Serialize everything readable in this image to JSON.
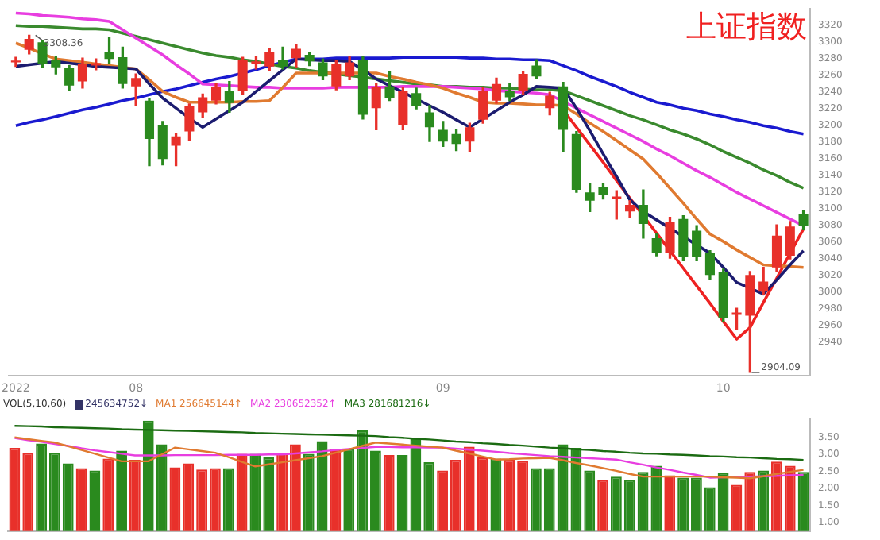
{
  "chart_data": [
    {
      "type": "candlestick",
      "title": "上证指数",
      "categories": [
        "2022",
        null,
        null,
        null,
        null,
        null,
        null,
        null,
        null,
        "08",
        null,
        null,
        null,
        null,
        null,
        null,
        null,
        null,
        null,
        null,
        null,
        null,
        null,
        null,
        null,
        null,
        null,
        null,
        null,
        null,
        null,
        null,
        "09",
        null,
        null,
        null,
        null,
        null,
        null,
        null,
        null,
        null,
        null,
        null,
        null,
        null,
        null,
        null,
        null,
        null,
        null,
        null,
        null,
        "10",
        null,
        null,
        null,
        null,
        null,
        null
      ],
      "ohlc": [
        [
          3276,
          3282,
          3271,
          3278
        ],
        [
          3291,
          3308.36,
          3286,
          3304
        ],
        [
          3300,
          3302,
          3270,
          3274
        ],
        [
          3279,
          3283,
          3262,
          3270
        ],
        [
          3269,
          3272,
          3242,
          3248
        ],
        [
          3253,
          3281,
          3245,
          3274
        ],
        [
          3272,
          3280,
          3267,
          3275
        ],
        [
          3288,
          3306,
          3275,
          3280
        ],
        [
          3282,
          3294,
          3245,
          3250
        ],
        [
          3247,
          3262,
          3224,
          3257
        ],
        [
          3230,
          3232,
          3152,
          3184
        ],
        [
          3201,
          3205,
          3153,
          3160
        ],
        [
          3176,
          3190,
          3152,
          3187
        ],
        [
          3193,
          3226,
          3182,
          3224
        ],
        [
          3216,
          3238,
          3210,
          3234
        ],
        [
          3230,
          3250,
          3226,
          3246
        ],
        [
          3242,
          3253,
          3216,
          3227
        ],
        [
          3242,
          3282,
          3238,
          3279
        ],
        [
          3274,
          3283,
          3268,
          3277
        ],
        [
          3271,
          3292,
          3266,
          3288
        ],
        [
          3279,
          3294,
          3268,
          3271
        ],
        [
          3281,
          3297,
          3270,
          3292
        ],
        [
          3285,
          3288,
          3272,
          3277
        ],
        [
          3276,
          3280,
          3255,
          3259
        ],
        [
          3247,
          3278,
          3243,
          3274
        ],
        [
          3259,
          3283,
          3255,
          3276
        ],
        [
          3279,
          3283,
          3208,
          3213
        ],
        [
          3221,
          3250,
          3195,
          3246
        ],
        [
          3247,
          3265,
          3230,
          3233
        ],
        [
          3201,
          3246,
          3195,
          3242
        ],
        [
          3239,
          3245,
          3220,
          3224
        ],
        [
          3216,
          3224,
          3181,
          3198
        ],
        [
          3195,
          3205,
          3175,
          3181
        ],
        [
          3190,
          3195,
          3170,
          3178
        ],
        [
          3181,
          3203,
          3169,
          3198
        ],
        [
          3207,
          3246,
          3203,
          3242
        ],
        [
          3230,
          3257,
          3227,
          3250
        ],
        [
          3242,
          3250,
          3230,
          3234
        ],
        [
          3242,
          3265,
          3238,
          3262
        ],
        [
          3272,
          3279,
          3256,
          3259
        ],
        [
          3221,
          3240,
          3213,
          3236
        ],
        [
          3247,
          3252,
          3169,
          3195
        ],
        [
          3190,
          3193,
          3120,
          3123
        ],
        [
          3120,
          3130,
          3097,
          3110
        ],
        [
          3126,
          3131,
          3112,
          3117
        ],
        [
          3112,
          3122,
          3088,
          3115
        ],
        [
          3097,
          3110,
          3090,
          3105
        ],
        [
          3105,
          3123,
          3065,
          3082
        ],
        [
          3065,
          3070,
          3044,
          3047
        ],
        [
          3047,
          3090,
          3041,
          3085
        ],
        [
          3088,
          3092,
          3038,
          3042
        ],
        [
          3074,
          3080,
          3038,
          3042
        ],
        [
          3047,
          3050,
          3016,
          3021
        ],
        [
          3024,
          3028,
          2965,
          2969
        ],
        [
          2973,
          2981,
          2955,
          2976
        ],
        [
          2972,
          3025,
          2904.09,
          3021
        ],
        [
          3001,
          3030,
          2998,
          3013
        ],
        [
          3030,
          3081,
          3025,
          3068
        ],
        [
          3044,
          3085,
          3040,
          3079
        ],
        [
          3094,
          3098,
          3075,
          3080
        ]
      ],
      "colors": [
        "#e8302a",
        "#e8302a",
        "#2a8a1e",
        "#2a8a1e",
        "#2a8a1e",
        "#e8302a",
        "#e8302a",
        "#2a8a1e",
        "#2a8a1e",
        "#e8302a",
        "#2a8a1e",
        "#2a8a1e",
        "#e8302a",
        "#e8302a",
        "#e8302a",
        "#e8302a",
        "#2a8a1e",
        "#e8302a",
        "#e8302a",
        "#e8302a",
        "#2a8a1e",
        "#e8302a",
        "#2a8a1e",
        "#2a8a1e",
        "#e8302a",
        "#e8302a",
        "#2a8a1e",
        "#e8302a",
        "#2a8a1e",
        "#e8302a",
        "#2a8a1e",
        "#2a8a1e",
        "#2a8a1e",
        "#2a8a1e",
        "#e8302a",
        "#e8302a",
        "#e8302a",
        "#2a8a1e",
        "#e8302a",
        "#2a8a1e",
        "#e8302a",
        "#2a8a1e",
        "#2a8a1e",
        "#2a8a1e",
        "#2a8a1e",
        "#e8302a",
        "#e8302a",
        "#2a8a1e",
        "#2a8a1e",
        "#e8302a",
        "#2a8a1e",
        "#2a8a1e",
        "#2a8a1e",
        "#2a8a1e",
        "#e8302a",
        "#e8302a",
        "#e8302a",
        "#e8302a",
        "#e8302a",
        "#2a8a1e"
      ],
      "series": [
        {
          "type": "line",
          "color": "#1c1c70",
          "values": [
            3271,
            3273,
            3275,
            3277,
            3275,
            3273,
            3271,
            3270,
            3269,
            3268,
            3250,
            3233,
            3221,
            3209,
            3198,
            3208,
            3218,
            3228,
            3241,
            3254,
            3267,
            3280,
            3279,
            3278,
            3278,
            3277,
            3267,
            3256,
            3248,
            3240,
            3232,
            3224,
            3216,
            3207,
            3198,
            3208,
            3218,
            3228,
            3237,
            3247,
            3246,
            3245,
            3221,
            3194,
            3166,
            3139,
            3111,
            3097,
            3087,
            3077,
            3067,
            3057,
            3047,
            3030,
            3012,
            3005,
            2998,
            3015,
            3033,
            3050
          ]
        },
        {
          "type": "line",
          "color": "#e07a30",
          "values": [
            3299,
            3293,
            3286,
            3280,
            3278,
            3276,
            3274,
            3272,
            3270,
            3268,
            3255,
            3241,
            3234,
            3228,
            3228,
            3228,
            3228,
            3229,
            3229,
            3230,
            3246,
            3263,
            3263,
            3263,
            3263,
            3263,
            3263,
            3263,
            3259,
            3256,
            3252,
            3249,
            3245,
            3239,
            3234,
            3228,
            3227,
            3227,
            3226,
            3225,
            3225,
            3224,
            3214,
            3203,
            3193,
            3182,
            3171,
            3160,
            3143,
            3125,
            3107,
            3088,
            3070,
            3061,
            3051,
            3042,
            3033,
            3032,
            3031,
            3030
          ]
        },
        {
          "type": "line",
          "color": "#e83ee0",
          "values": [
            3335,
            3334,
            3332,
            3331,
            3330,
            3328,
            3327,
            3325,
            3315,
            3305,
            3295,
            3285,
            3273,
            3262,
            3250,
            3249,
            3248,
            3247,
            3246,
            3246,
            3245,
            3245,
            3245,
            3245,
            3246,
            3246,
            3246,
            3246,
            3246,
            3247,
            3247,
            3247,
            3247,
            3246,
            3245,
            3244,
            3242,
            3241,
            3240,
            3239,
            3237,
            3229,
            3221,
            3213,
            3205,
            3197,
            3189,
            3181,
            3172,
            3164,
            3155,
            3146,
            3138,
            3129,
            3120,
            3112,
            3104,
            3096,
            3088,
            3080
          ]
        },
        {
          "type": "line",
          "color": "#3a8a2e",
          "values": [
            3320,
            3319,
            3319,
            3318,
            3317,
            3316,
            3316,
            3315,
            3311,
            3307,
            3303,
            3299,
            3295,
            3291,
            3287,
            3284,
            3282,
            3279,
            3277,
            3274,
            3271,
            3269,
            3266,
            3264,
            3262,
            3260,
            3258,
            3256,
            3254,
            3252,
            3250,
            3249,
            3247,
            3247,
            3246,
            3246,
            3245,
            3245,
            3244,
            3243,
            3243,
            3242,
            3236,
            3230,
            3224,
            3218,
            3212,
            3207,
            3201,
            3195,
            3190,
            3184,
            3177,
            3169,
            3162,
            3155,
            3147,
            3140,
            3132,
            3125
          ]
        },
        {
          "type": "line",
          "color": "#ee2222",
          "values": [
            null,
            null,
            null,
            null,
            null,
            null,
            null,
            null,
            null,
            null,
            null,
            null,
            null,
            null,
            null,
            null,
            null,
            null,
            null,
            null,
            null,
            null,
            null,
            null,
            null,
            null,
            null,
            null,
            null,
            null,
            null,
            null,
            null,
            null,
            null,
            null,
            null,
            null,
            null,
            null,
            null,
            3219,
            3198,
            3177,
            3156,
            3134,
            3113,
            3092,
            3071,
            3050,
            3029,
            3008,
            2987,
            2965,
            2944,
            2958,
            2988,
            3017,
            3047,
            3076
          ]
        },
        {
          "type": "line",
          "color": "#1a1ad0",
          "values": [
            3200,
            3204,
            3207,
            3211,
            3215,
            3219,
            3222,
            3226,
            3230,
            3233,
            3237,
            3241,
            3244,
            3248,
            3252,
            3256,
            3259,
            3263,
            3267,
            3272,
            3276,
            3280,
            3280,
            3280,
            3281,
            3281,
            3281,
            3281,
            3281,
            3282,
            3282,
            3282,
            3282,
            3282,
            3281,
            3281,
            3280,
            3280,
            3279,
            3279,
            3278,
            3272,
            3266,
            3259,
            3253,
            3247,
            3240,
            3234,
            3228,
            3225,
            3221,
            3218,
            3214,
            3211,
            3207,
            3204,
            3200,
            3197,
            3193,
            3190
          ]
        }
      ],
      "ylim": [
        2900,
        3340
      ],
      "yticks": [
        2940,
        2960,
        2980,
        3000,
        3020,
        3040,
        3060,
        3080,
        3100,
        3120,
        3140,
        3160,
        3180,
        3200,
        3220,
        3240,
        3260,
        3280,
        3300,
        3320
      ],
      "annotations": [
        "3308.36",
        "2904.09"
      ],
      "grid": false
    },
    {
      "type": "bar",
      "legend_title": "VOL(5,10,60)",
      "legend": "top left",
      "tick_labels": "y",
      "categories": [
        null,
        null,
        null,
        null,
        null,
        null,
        null,
        null,
        null,
        null,
        null,
        null,
        null,
        null,
        null,
        null,
        null,
        null,
        null,
        null,
        null,
        null,
        null,
        null,
        null,
        null,
        null,
        null,
        null,
        null,
        null,
        null,
        null,
        null,
        null,
        null,
        null,
        null,
        null,
        null,
        null,
        null,
        null,
        null,
        null,
        null,
        null,
        null,
        null,
        null,
        null,
        null,
        null,
        null,
        null,
        null,
        null,
        null,
        null,
        null
      ],
      "series": [
        {
          "type": "bar",
          "name": "245634752↓",
          "values": [
            3.19,
            3.05,
            3.32,
            3.05,
            2.74,
            2.6,
            2.53,
            2.88,
            3.11,
            2.84,
            3.99,
            3.3,
            2.62,
            2.74,
            2.56,
            2.6,
            2.6,
            3.02,
            3.02,
            2.91,
            3.05,
            3.3,
            3.02,
            3.39,
            3.16,
            3.16,
            3.71,
            3.11,
            2.98,
            2.98,
            3.46,
            2.77,
            2.53,
            2.84,
            3.23,
            2.91,
            2.88,
            2.84,
            2.81,
            2.6,
            2.6,
            3.3,
            3.19,
            2.53,
            2.25,
            2.35,
            2.25,
            2.49,
            2.67,
            2.39,
            2.32,
            2.32,
            2.04,
            2.46,
            2.11,
            2.49,
            2.53,
            2.79,
            2.67,
            2.49
          ],
          "colors": [
            "#e8302a",
            "#e8302a",
            "#2a8a1e",
            "#2a8a1e",
            "#2a8a1e",
            "#e8302a",
            "#2a8a1e",
            "#e8302a",
            "#2a8a1e",
            "#e8302a",
            "#2a8a1e",
            "#2a8a1e",
            "#e8302a",
            "#e8302a",
            "#e8302a",
            "#e8302a",
            "#2a8a1e",
            "#e8302a",
            "#2a8a1e",
            "#2a8a1e",
            "#e8302a",
            "#e8302a",
            "#2a8a1e",
            "#2a8a1e",
            "#e8302a",
            "#2a8a1e",
            "#2a8a1e",
            "#2a8a1e",
            "#e8302a",
            "#2a8a1e",
            "#2a8a1e",
            "#2a8a1e",
            "#e8302a",
            "#e8302a",
            "#e8302a",
            "#e8302a",
            "#2a8a1e",
            "#e8302a",
            "#e8302a",
            "#2a8a1e",
            "#2a8a1e",
            "#2a8a1e",
            "#2a8a1e",
            "#2a8a1e",
            "#e8302a",
            "#2a8a1e",
            "#2a8a1e",
            "#2a8a1e",
            "#2a8a1e",
            "#e8302a",
            "#2a8a1e",
            "#2a8a1e",
            "#2a8a1e",
            "#2a8a1e",
            "#e8302a",
            "#e8302a",
            "#2a8a1e",
            "#e8302a",
            "#e8302a",
            "#2a8a1e"
          ]
        },
        {
          "type": "line",
          "name": "MA1 256645144↑",
          "color": "#e07a30",
          "values": [
            3.5,
            3.45,
            3.4,
            3.35,
            3.24,
            3.13,
            3.02,
            2.91,
            2.8,
            2.8,
            2.8,
            3.0,
            3.2,
            3.15,
            3.1,
            3.05,
            2.92,
            2.78,
            2.65,
            2.71,
            2.77,
            2.83,
            2.89,
            2.95,
            3.05,
            3.15,
            3.25,
            3.35,
            3.32,
            3.29,
            3.26,
            3.23,
            3.2,
            3.11,
            3.03,
            2.94,
            2.85,
            2.86,
            2.88,
            2.89,
            2.9,
            2.83,
            2.75,
            2.68,
            2.6,
            2.52,
            2.43,
            2.35,
            2.35,
            2.35,
            2.35,
            2.35,
            2.35,
            2.33,
            2.32,
            2.3,
            2.36,
            2.43,
            2.49,
            2.55
          ]
        },
        {
          "type": "line",
          "name": "MA2 230652352↑",
          "color": "#e83ee0",
          "values": [
            3.48,
            3.42,
            3.37,
            3.31,
            3.25,
            3.18,
            3.12,
            3.07,
            3.02,
            2.97,
            2.97,
            2.97,
            2.98,
            2.98,
            2.98,
            2.98,
            2.99,
            2.99,
            2.99,
            3.0,
            3.0,
            3.03,
            3.06,
            3.09,
            3.13,
            3.16,
            3.19,
            3.22,
            3.22,
            3.21,
            3.21,
            3.2,
            3.2,
            3.17,
            3.14,
            3.11,
            3.08,
            3.04,
            3.01,
            2.98,
            2.95,
            2.93,
            2.91,
            2.89,
            2.87,
            2.85,
            2.77,
            2.7,
            2.62,
            2.55,
            2.47,
            2.4,
            2.32,
            2.33,
            2.34,
            2.35,
            2.36,
            2.37,
            2.39,
            2.4
          ]
        },
        {
          "type": "line",
          "name": "MA3 281681216↓",
          "color": "#1b6b12",
          "values": [
            3.84,
            3.83,
            3.82,
            3.8,
            3.79,
            3.78,
            3.77,
            3.76,
            3.74,
            3.73,
            3.72,
            3.71,
            3.7,
            3.69,
            3.68,
            3.67,
            3.66,
            3.65,
            3.63,
            3.62,
            3.61,
            3.6,
            3.59,
            3.58,
            3.57,
            3.56,
            3.55,
            3.54,
            3.51,
            3.49,
            3.46,
            3.44,
            3.41,
            3.38,
            3.36,
            3.33,
            3.31,
            3.28,
            3.26,
            3.23,
            3.2,
            3.18,
            3.15,
            3.13,
            3.1,
            3.08,
            3.05,
            3.03,
            3.02,
            3.0,
            2.99,
            2.97,
            2.95,
            2.94,
            2.92,
            2.91,
            2.89,
            2.87,
            2.86,
            2.84
          ]
        }
      ],
      "ylim": [
        0.75,
        4.05
      ],
      "yticks": [
        {
          "value": 1,
          "label": "1.00"
        },
        {
          "value": 1.5,
          "label": "1.50"
        },
        {
          "value": 2,
          "label": "2.00"
        },
        {
          "value": 2.5,
          "label": "2.50"
        },
        {
          "value": 3,
          "label": "3.00"
        },
        {
          "value": 3.5,
          "label": "3.50"
        }
      ],
      "grid": false
    }
  ]
}
